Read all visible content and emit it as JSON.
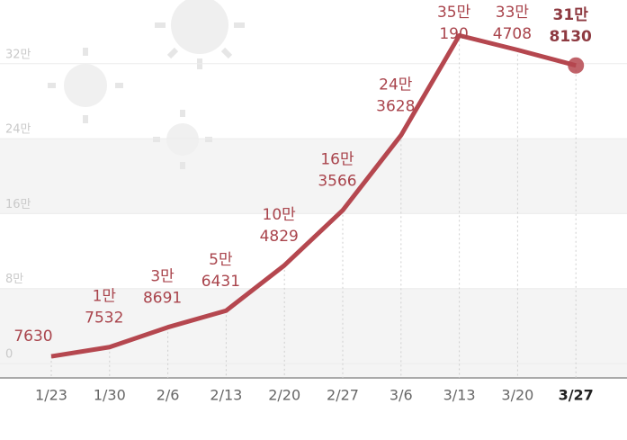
{
  "chart_data": {
    "type": "line",
    "categories": [
      "1/23",
      "1/30",
      "2/6",
      "2/13",
      "2/20",
      "2/27",
      "3/6",
      "3/13",
      "3/20",
      "3/27"
    ],
    "values": [
      7630,
      17532,
      38691,
      56431,
      104829,
      163566,
      243628,
      350190,
      334708,
      318130
    ],
    "value_labels": [
      [
        "7630"
      ],
      [
        "1만",
        "7532"
      ],
      [
        "3만",
        "8691"
      ],
      [
        "5만",
        "6431"
      ],
      [
        "10만",
        "4829"
      ],
      [
        "16만",
        "3566"
      ],
      [
        "24만",
        "3628"
      ],
      [
        "35만",
        "190"
      ],
      [
        "33만",
        "4708"
      ],
      [
        "31만",
        "8130"
      ]
    ],
    "color": "#b5474f",
    "ylim": [
      0,
      388000
    ],
    "yticks": [
      {
        "value": 0,
        "label": "0"
      },
      {
        "value": 80000,
        "label": "8만"
      },
      {
        "value": 160000,
        "label": "16만"
      },
      {
        "value": 240000,
        "label": "24만"
      },
      {
        "value": 320000,
        "label": "32만"
      }
    ],
    "grid": true
  }
}
